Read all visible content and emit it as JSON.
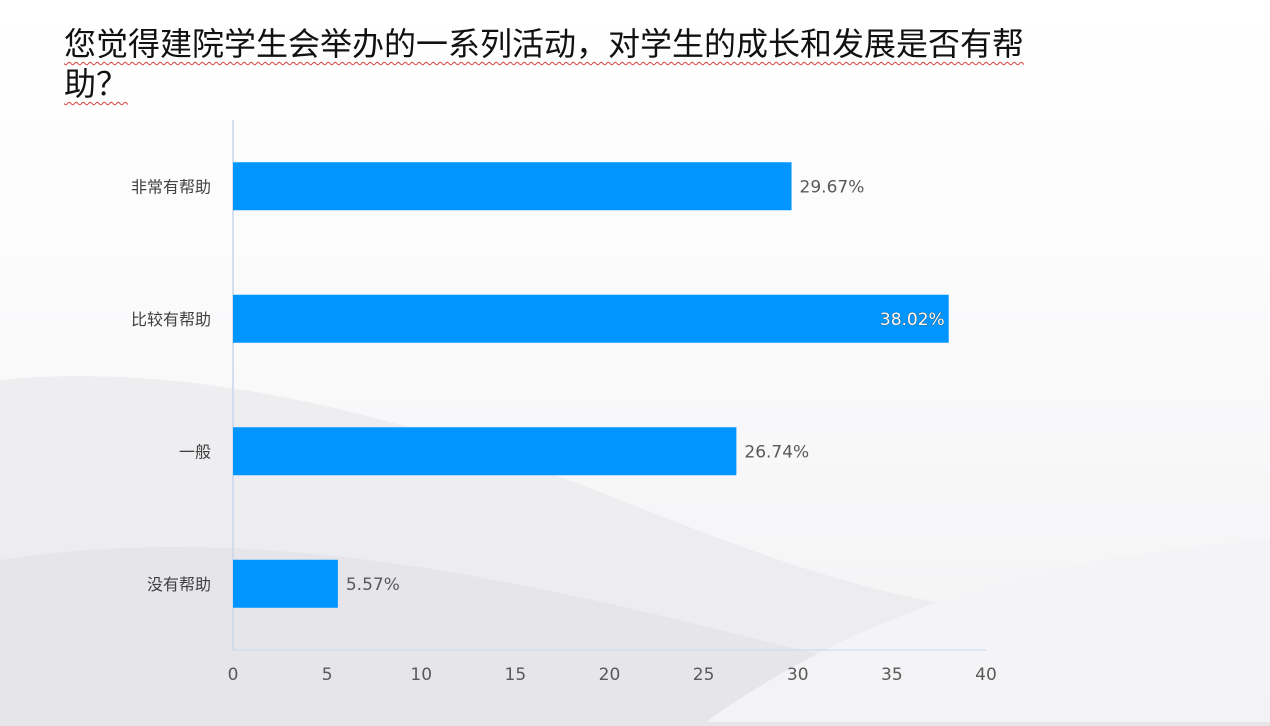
{
  "slide": {
    "title": "您觉得建院学生会举办的一系列活动，对学生的成长和发展是否有帮助？"
  },
  "colors": {
    "bar": "#0095ff",
    "axis": "#c9d6ea",
    "background_wave": "#e7e7ea"
  },
  "chart_data": {
    "type": "bar",
    "orientation": "horizontal",
    "title": "您觉得建院学生会举办的一系列活动，对学生的成长和发展是否有帮助？",
    "categories": [
      "非常有帮助",
      "比较有帮助",
      "一般",
      "没有帮助"
    ],
    "values": [
      29.67,
      38.02,
      26.74,
      5.57
    ],
    "data_labels": [
      "29.67%",
      "38.02%",
      "26.74%",
      "5.57%"
    ],
    "xlim": [
      0,
      40
    ],
    "x_ticks": [
      0,
      5,
      10,
      15,
      20,
      25,
      30,
      35,
      40
    ],
    "xlabel": "",
    "ylabel": "",
    "grid": false,
    "legend": "none"
  }
}
